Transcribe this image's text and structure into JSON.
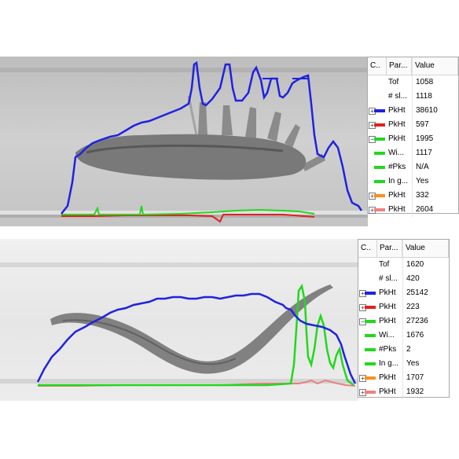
{
  "colors": {
    "blue": "#1f22e0",
    "red": "#e32020",
    "green": "#22d81e",
    "orange": "#ff8c1a",
    "pink": "#f08080",
    "none": "transparent"
  },
  "panels": [
    {
      "header": {
        "col_color": "C..",
        "col_param": "Par...",
        "col_value": "Value"
      },
      "rows": [
        {
          "expander": "",
          "color_key": "none",
          "param": "Tof",
          "value": "1058"
        },
        {
          "expander": "",
          "color_key": "none",
          "param": "# sl...",
          "value": "1118"
        },
        {
          "expander": "+",
          "color_key": "blue",
          "param": "PkHt",
          "value": "38610"
        },
        {
          "expander": "+",
          "color_key": "red",
          "param": "PkHt",
          "value": "597"
        },
        {
          "expander": "−",
          "color_key": "green",
          "param": "PkHt",
          "value": "1995"
        },
        {
          "expander": "",
          "color_key": "green",
          "param": "Wi...",
          "value": "1117"
        },
        {
          "expander": "",
          "color_key": "green",
          "param": "#Pks",
          "value": "N/A"
        },
        {
          "expander": "",
          "color_key": "green",
          "param": "In g...",
          "value": "Yes"
        },
        {
          "expander": "+",
          "color_key": "orange",
          "param": "PkHt",
          "value": "332"
        },
        {
          "expander": "+",
          "color_key": "pink",
          "param": "PkHt",
          "value": "2604"
        }
      ]
    },
    {
      "header": {
        "col_color": "C..",
        "col_param": "Par...",
        "col_value": "Value"
      },
      "rows": [
        {
          "expander": "",
          "color_key": "none",
          "param": "Tof",
          "value": "1620"
        },
        {
          "expander": "",
          "color_key": "none",
          "param": "# sl...",
          "value": "420"
        },
        {
          "expander": "+",
          "color_key": "blue",
          "param": "PkHt",
          "value": "25142"
        },
        {
          "expander": "+",
          "color_key": "red",
          "param": "PkHt",
          "value": "223"
        },
        {
          "expander": "−",
          "color_key": "green",
          "param": "PkHt",
          "value": "27236"
        },
        {
          "expander": "",
          "color_key": "green",
          "param": "Wi...",
          "value": "1676"
        },
        {
          "expander": "",
          "color_key": "green",
          "param": "#Pks",
          "value": "2"
        },
        {
          "expander": "",
          "color_key": "green",
          "param": "In g...",
          "value": "Yes"
        },
        {
          "expander": "+",
          "color_key": "orange",
          "param": "PkHt",
          "value": "1707"
        },
        {
          "expander": "+",
          "color_key": "pink",
          "param": "PkHt",
          "value": "1932"
        }
      ]
    }
  ]
}
